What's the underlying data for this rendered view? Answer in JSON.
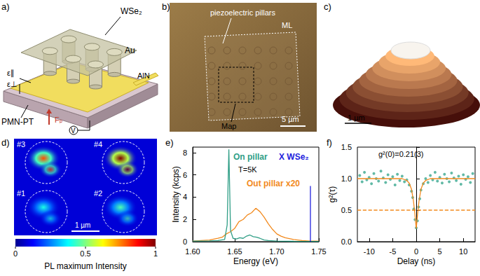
{
  "panels": {
    "a": {
      "label": "a)",
      "membrane": "WSe₂",
      "electrode": "Au",
      "layer": "AlN",
      "substrate": "PMN-PT",
      "strain_in_plane": "ε∥",
      "strain_out_of_plane": "ε⊥",
      "force": "Fₚ",
      "voltage": "V"
    },
    "b": {
      "label": "b)",
      "pillars": "piezoelectric pillars",
      "monolayer": "ML",
      "map": "Map",
      "scale_bar": "5 µm"
    },
    "c": {
      "label": "c)",
      "scale_bar": "1 µm"
    },
    "d": {
      "label": "d)",
      "scale_bar": "1 µm",
      "spots": [
        {
          "label": "#1",
          "peak": 0.4
        },
        {
          "label": "#2",
          "peak": 0.45
        },
        {
          "label": "#3",
          "peak": 0.8
        },
        {
          "label": "#4",
          "peak": 1.0
        }
      ],
      "colorbar": {
        "label": "PL maximum Intensity",
        "range": [
          0,
          1
        ],
        "ticks": [
          0,
          0.5,
          1
        ]
      }
    }
  },
  "chart_data": [
    {
      "title": "e)",
      "type": "line",
      "x_label": "Energy (eV)",
      "y_label": "Intensity (kcps)",
      "xlim": [
        1.6,
        1.75
      ],
      "xticks": [
        {
          "value": 1.6,
          "label": "1.60"
        },
        {
          "value": 1.65,
          "label": "1.65"
        },
        {
          "value": 1.7,
          "label": "1.70"
        },
        {
          "value": 1.75,
          "label": "1.75"
        }
      ],
      "ylim": [
        0,
        8.5
      ],
      "yticks": [
        0,
        2,
        4,
        6,
        8
      ],
      "annotations": [
        "T=5K"
      ],
      "series": [
        {
          "name": "Out pillar x20",
          "color": "#f28a1e",
          "x": [
            1.6,
            1.61,
            1.62,
            1.63,
            1.635,
            1.64,
            1.645,
            1.65,
            1.655,
            1.66,
            1.665,
            1.67,
            1.675,
            1.68,
            1.685,
            1.69,
            1.695,
            1.7,
            1.705,
            1.71,
            1.72,
            1.73,
            1.74,
            1.75
          ],
          "values": [
            0.05,
            0.1,
            0.15,
            0.3,
            0.4,
            0.7,
            0.9,
            1.2,
            1.8,
            2.0,
            2.4,
            2.6,
            3.0,
            2.7,
            2.2,
            1.6,
            1.1,
            0.7,
            0.5,
            0.35,
            0.2,
            0.1,
            0.05,
            0.05
          ]
        },
        {
          "name": "On pillar",
          "color": "#2f9e86",
          "x": [
            1.6,
            1.61,
            1.62,
            1.63,
            1.638,
            1.641,
            1.643,
            1.645,
            1.648,
            1.652,
            1.656,
            1.66,
            1.664,
            1.668,
            1.672,
            1.676,
            1.68,
            1.685,
            1.69,
            1.7,
            1.72,
            1.75
          ],
          "values": [
            0.05,
            0.05,
            0.07,
            0.1,
            0.2,
            1.5,
            8.3,
            1.0,
            0.3,
            0.25,
            0.35,
            0.3,
            0.5,
            0.6,
            0.45,
            0.4,
            0.3,
            0.15,
            0.1,
            0.05,
            0.03,
            0.02
          ]
        },
        {
          "name": "X WSe₂",
          "color": "#2222dd",
          "x": [
            1.74,
            1.74
          ],
          "values": [
            0,
            5
          ]
        }
      ]
    },
    {
      "title": "f)",
      "type": "scatter",
      "x_label": "Delay (ns)",
      "y_label": "g²(τ)",
      "xlim": [
        -12.5,
        12.5
      ],
      "xticks": [
        -10,
        -5,
        0,
        5,
        10
      ],
      "ylim": [
        0,
        1.5
      ],
      "yticks": [
        {
          "value": 0,
          "label": "0.0"
        },
        {
          "value": 0.5,
          "label": "0.5"
        },
        {
          "value": 1,
          "label": "1.0"
        },
        {
          "value": 1.5,
          "label": "1.5"
        }
      ],
      "annotations": [
        "g²(0)=0.21(3)"
      ],
      "series": [
        {
          "type": "scatter",
          "color": "#3aa88e",
          "marker": "circle",
          "x": [
            -12,
            -11.5,
            -11,
            -10.5,
            -10,
            -9.5,
            -9,
            -8.5,
            -8,
            -7.5,
            -7,
            -6.5,
            -6,
            -5.5,
            -5,
            -4.5,
            -4,
            -3.5,
            -3,
            -2.5,
            -2,
            -1.5,
            -1,
            -0.75,
            -0.5,
            -0.25,
            0,
            0.25,
            0.5,
            0.75,
            1,
            1.5,
            2,
            2.5,
            3,
            3.5,
            4,
            4.5,
            5,
            5.5,
            6,
            6.5,
            7,
            7.5,
            8,
            8.5,
            9,
            9.5,
            10,
            10.5,
            11,
            11.5,
            12
          ],
          "values": [
            1.05,
            0.95,
            1.1,
            0.98,
            1.02,
            0.92,
            1.08,
            1.0,
            0.96,
            1.12,
            1.01,
            0.94,
            1.06,
            0.99,
            1.03,
            0.9,
            1.07,
            0.97,
            1.04,
            0.95,
            0.98,
            0.9,
            0.8,
            0.7,
            0.52,
            0.35,
            0.22,
            0.33,
            0.55,
            0.68,
            0.82,
            0.92,
            1.0,
            0.94,
            1.05,
            0.98,
            1.1,
            0.96,
            1.02,
            0.93,
            1.07,
            1.0,
            0.95,
            1.09,
            1.01,
            0.97,
            1.04,
            0.91,
            1.06,
            0.99,
            1.03,
            0.94,
            1.08
          ]
        },
        {
          "type": "line",
          "color": "#f28a1e",
          "x": [
            -12.5,
            -3,
            -2,
            -1.5,
            -1,
            -0.6,
            -0.3,
            0,
            0.3,
            0.6,
            1,
            1.5,
            2,
            3,
            12.5
          ],
          "values": [
            1.0,
            1.0,
            0.97,
            0.93,
            0.83,
            0.65,
            0.45,
            0.21,
            0.45,
            0.65,
            0.83,
            0.93,
            0.97,
            1.0,
            1.0
          ]
        },
        {
          "type": "line",
          "color": "#f28a1e",
          "line_style": "dashed",
          "x": [
            -12.5,
            12.5
          ],
          "values": [
            0.5,
            0.5
          ]
        }
      ]
    }
  ]
}
